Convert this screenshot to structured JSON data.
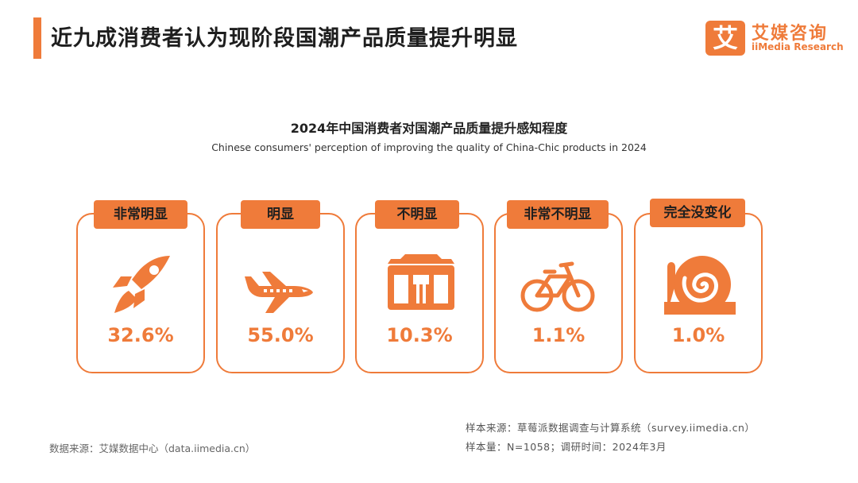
{
  "header": {
    "title": "近九成消费者认为现阶段国潮产品质量提升明显",
    "logo_mark": "艾",
    "logo_cn": "艾媒咨询",
    "logo_en": "iiMedia Research"
  },
  "chart_data": {
    "type": "table",
    "title": "2024年中国消费者对国潮产品质量提升感知程度",
    "subtitle": "Chinese consumers' perception of improving the quality of China-Chic products in 2024",
    "categories": [
      "非常明显",
      "明显",
      "不明显",
      "非常不明显",
      "完全没变化"
    ],
    "values": [
      32.6,
      55.0,
      10.3,
      1.1,
      1.0
    ],
    "value_labels": [
      "32.6%",
      "55.0%",
      "10.3%",
      "1.1%",
      "1.0%"
    ],
    "icons": [
      "rocket-icon",
      "airplane-icon",
      "bus-icon",
      "bicycle-icon",
      "snail-icon"
    ],
    "unit": "%"
  },
  "footer": {
    "left_source": "数据来源：艾媒数据中心（data.iimedia.cn）",
    "right_source": "样本来源：草莓派数据调查与计算系统（survey.iimedia.cn）",
    "sample_info": "样本量：N=1058；调研时间：2024年3月"
  },
  "colors": {
    "accent": "#ef7b3a"
  }
}
